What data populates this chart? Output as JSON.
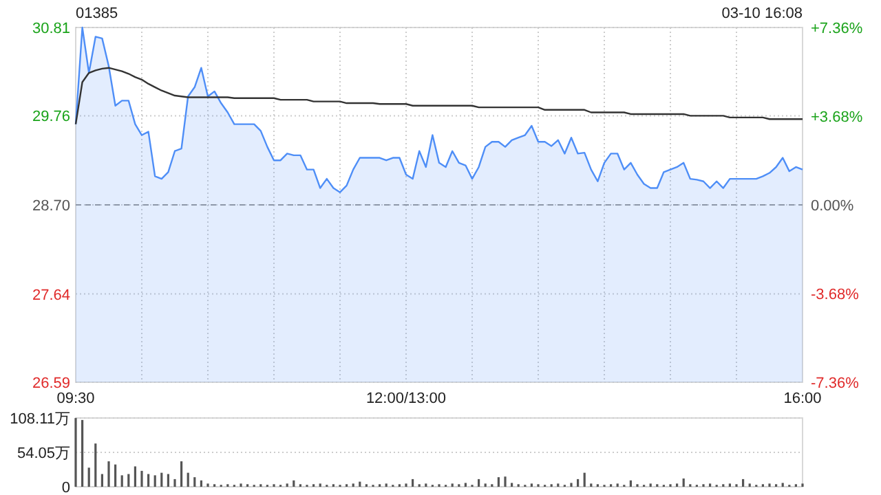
{
  "chart_data": [
    {
      "type": "area",
      "title": "01385",
      "annotations": [
        "03-10 16:08"
      ],
      "categories": [
        "09:30",
        null,
        null,
        null,
        null,
        null,
        null,
        null,
        null,
        null,
        null,
        null,
        null,
        null,
        null,
        null,
        null,
        null,
        null,
        null,
        null,
        null,
        null,
        null,
        null,
        null,
        null,
        null,
        null,
        null,
        null,
        null,
        null,
        null,
        null,
        null,
        null,
        null,
        null,
        null,
        null,
        null,
        null,
        null,
        null,
        null,
        null,
        null,
        null,
        null,
        "12:00/13:00",
        null,
        null,
        null,
        null,
        null,
        null,
        null,
        null,
        null,
        null,
        null,
        null,
        null,
        null,
        null,
        null,
        null,
        null,
        null,
        null,
        null,
        null,
        null,
        null,
        null,
        null,
        null,
        null,
        null,
        null,
        null,
        null,
        null,
        null,
        null,
        null,
        null,
        null,
        null,
        null,
        null,
        null,
        null,
        null,
        null,
        null,
        null,
        null,
        null,
        null,
        null,
        null,
        null,
        null,
        null,
        null,
        null,
        null,
        null,
        "16:00"
      ],
      "ylim": [
        26.59,
        30.81
      ],
      "yticks": [
        26.59,
        27.64,
        {
          "value": 28.7,
          "label": "28.70"
        },
        29.76,
        30.81
      ],
      "y2lim": [
        -7.36,
        7.36
      ],
      "y2ticks": [
        {
          "value": -7.36,
          "label": "-7.36%"
        },
        {
          "value": -3.68,
          "label": "-3.68%"
        },
        {
          "value": 0,
          "label": "0.00%"
        },
        {
          "value": 3.68,
          "label": "+3.68%"
        },
        {
          "value": 7.36,
          "label": "+7.36%"
        }
      ],
      "grid": true,
      "ref_lines": [
        {
          "axis": "y",
          "value": 28.7,
          "color": "#999999",
          "line_style": "dashed"
        }
      ],
      "series": [
        {
          "color": "#4e8ef7",
          "values": [
            29.66,
            30.81,
            30.27,
            30.7,
            30.68,
            30.35,
            29.88,
            29.94,
            29.94,
            29.66,
            29.53,
            29.57,
            29.04,
            29.01,
            29.09,
            29.34,
            29.37,
            29.99,
            30.1,
            30.33,
            29.99,
            30.05,
            29.91,
            29.8,
            29.66,
            29.66,
            29.66,
            29.66,
            29.58,
            29.39,
            29.23,
            29.23,
            29.31,
            29.29,
            29.29,
            29.12,
            29.12,
            28.9,
            29.01,
            28.9,
            28.85,
            28.93,
            29.12,
            29.26,
            29.26,
            29.26,
            29.26,
            29.23,
            29.26,
            29.26,
            29.06,
            29.01,
            29.34,
            29.15,
            29.53,
            29.2,
            29.15,
            29.34,
            29.2,
            29.17,
            29.01,
            29.15,
            29.39,
            29.45,
            29.45,
            29.39,
            29.47,
            29.5,
            29.53,
            29.64,
            29.45,
            29.45,
            29.4,
            29.47,
            29.31,
            29.5,
            29.31,
            29.32,
            29.12,
            28.98,
            29.2,
            29.31,
            29.31,
            29.12,
            29.2,
            29.06,
            28.95,
            28.9,
            28.9,
            29.09,
            29.12,
            29.15,
            29.2,
            29.01,
            29.0,
            28.98,
            28.9,
            28.98,
            28.9,
            29.01,
            29.01,
            29.01,
            29.01,
            29.01,
            29.04,
            29.08,
            29.15,
            29.26,
            29.1,
            29.15,
            29.12
          ]
        },
        {
          "type": "line",
          "color": "#333333",
          "values": [
            29.66,
            30.16,
            30.27,
            30.3,
            30.32,
            30.33,
            30.31,
            30.29,
            30.26,
            30.22,
            30.19,
            30.14,
            30.1,
            30.06,
            30.03,
            30.0,
            29.99,
            29.98,
            29.98,
            29.98,
            29.98,
            29.98,
            29.98,
            29.98,
            29.97,
            29.97,
            29.97,
            29.97,
            29.97,
            29.97,
            29.97,
            29.95,
            29.95,
            29.95,
            29.95,
            29.95,
            29.93,
            29.93,
            29.93,
            29.93,
            29.93,
            29.91,
            29.91,
            29.91,
            29.91,
            29.91,
            29.9,
            29.9,
            29.9,
            29.9,
            29.9,
            29.88,
            29.88,
            29.88,
            29.88,
            29.88,
            29.88,
            29.88,
            29.88,
            29.88,
            29.88,
            29.86,
            29.86,
            29.86,
            29.86,
            29.86,
            29.86,
            29.86,
            29.86,
            29.86,
            29.86,
            29.83,
            29.83,
            29.83,
            29.83,
            29.83,
            29.83,
            29.83,
            29.8,
            29.8,
            29.8,
            29.8,
            29.8,
            29.8,
            29.78,
            29.78,
            29.78,
            29.78,
            29.78,
            29.78,
            29.78,
            29.78,
            29.78,
            29.76,
            29.76,
            29.76,
            29.76,
            29.76,
            29.76,
            29.74,
            29.74,
            29.74,
            29.74,
            29.74,
            29.74,
            29.72,
            29.72,
            29.72,
            29.72,
            29.72,
            29.72
          ]
        }
      ]
    },
    {
      "type": "bar",
      "categories": [
        null,
        null,
        null,
        null,
        null,
        null,
        null,
        null,
        null,
        null,
        null,
        null,
        null,
        null,
        null,
        null,
        null,
        null,
        null,
        null,
        null,
        null,
        null,
        null,
        null,
        null,
        null,
        null,
        null,
        null,
        null,
        null,
        null,
        null,
        null,
        null,
        null,
        null,
        null,
        null,
        null,
        null,
        null,
        null,
        null,
        null,
        null,
        null,
        null,
        null,
        null,
        null,
        null,
        null,
        null,
        null,
        null,
        null,
        null,
        null,
        null,
        null,
        null,
        null,
        null,
        null,
        null,
        null,
        null,
        null,
        null,
        null,
        null,
        null,
        null,
        null,
        null,
        null,
        null,
        null,
        null,
        null,
        null,
        null,
        null,
        null,
        null,
        null,
        null,
        null,
        null,
        null,
        null,
        null,
        null,
        null,
        null,
        null,
        null,
        null,
        null,
        null,
        null,
        null,
        null,
        null,
        null,
        null,
        null,
        null,
        null
      ],
      "ylim": [
        0,
        108.11
      ],
      "yticks": [
        0,
        {
          "value": 54.05,
          "label": "54.05万"
        },
        {
          "value": 108.11,
          "label": "108.11万"
        }
      ],
      "tick_labels": "y",
      "grid": "y",
      "series": [
        {
          "color": "#555555",
          "values": [
            108,
            105,
            30,
            68,
            20,
            40,
            35,
            18,
            20,
            32,
            25,
            20,
            18,
            22,
            20,
            12,
            40,
            22,
            15,
            10,
            5,
            4,
            3,
            4,
            3,
            5,
            4,
            3,
            4,
            3,
            4,
            3,
            5,
            10,
            4,
            3,
            4,
            5,
            3,
            4,
            3,
            4,
            5,
            8,
            4,
            3,
            4,
            5,
            3,
            4,
            5,
            12,
            4,
            5,
            3,
            4,
            3,
            5,
            4,
            6,
            3,
            12,
            5,
            4,
            15,
            16,
            6,
            4,
            3,
            5,
            4,
            3,
            4,
            5,
            3,
            6,
            12,
            22,
            5,
            4,
            3,
            4,
            5,
            3,
            10,
            4,
            3,
            5,
            4,
            3,
            4,
            5,
            13,
            4,
            3,
            4,
            5,
            3,
            4,
            5,
            4,
            12,
            5,
            3,
            4,
            5,
            4,
            6,
            3,
            4,
            5
          ]
        }
      ]
    }
  ]
}
